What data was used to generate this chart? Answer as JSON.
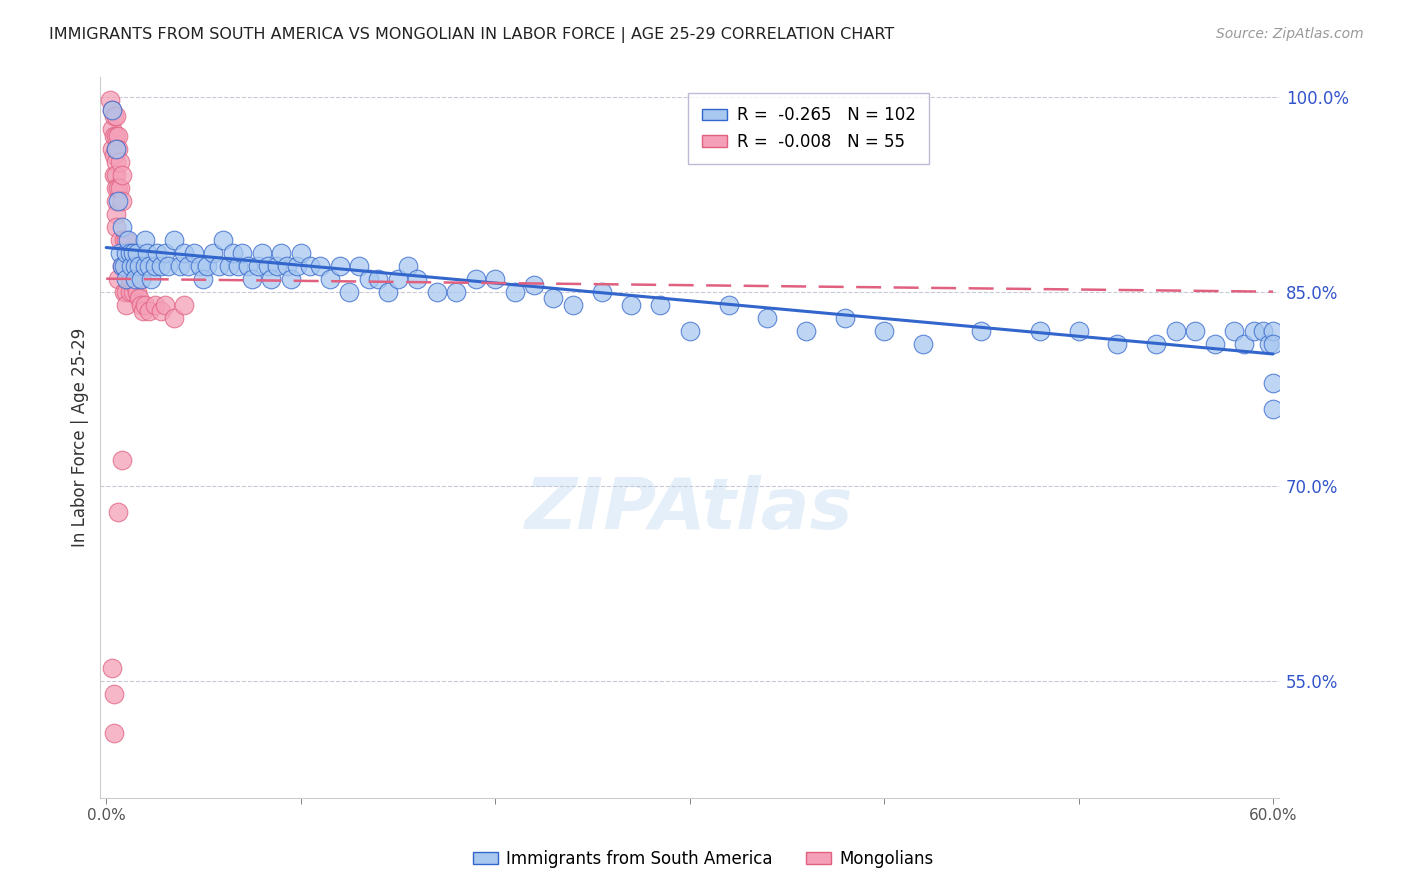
{
  "title": "IMMIGRANTS FROM SOUTH AMERICA VS MONGOLIAN IN LABOR FORCE | AGE 25-29 CORRELATION CHART",
  "source": "Source: ZipAtlas.com",
  "ylabel": "In Labor Force | Age 25-29",
  "r_blue": -0.265,
  "n_blue": 102,
  "r_pink": -0.008,
  "n_pink": 55,
  "legend_blue": "Immigrants from South America",
  "legend_pink": "Mongolians",
  "xlim": [
    -0.003,
    0.603
  ],
  "ylim": [
    0.46,
    1.015
  ],
  "right_yticks": [
    0.55,
    0.7,
    0.85,
    1.0
  ],
  "right_yticklabels": [
    "55.0%",
    "70.0%",
    "85.0%",
    "100.0%"
  ],
  "blue_color": "#A8C8F0",
  "pink_color": "#F4A0B8",
  "blue_line_color": "#3366CC",
  "pink_line_color": "#E06080",
  "watermark": "ZIPAtlas",
  "blue_scatter_x": [
    0.003,
    0.005,
    0.006,
    0.007,
    0.008,
    0.008,
    0.009,
    0.01,
    0.01,
    0.011,
    0.012,
    0.013,
    0.014,
    0.015,
    0.015,
    0.016,
    0.017,
    0.018,
    0.02,
    0.02,
    0.021,
    0.022,
    0.023,
    0.025,
    0.026,
    0.028,
    0.03,
    0.032,
    0.035,
    0.038,
    0.04,
    0.042,
    0.045,
    0.048,
    0.05,
    0.052,
    0.055,
    0.058,
    0.06,
    0.063,
    0.065,
    0.068,
    0.07,
    0.073,
    0.075,
    0.078,
    0.08,
    0.083,
    0.085,
    0.088,
    0.09,
    0.093,
    0.095,
    0.098,
    0.1,
    0.105,
    0.11,
    0.115,
    0.12,
    0.125,
    0.13,
    0.135,
    0.14,
    0.145,
    0.15,
    0.155,
    0.16,
    0.17,
    0.18,
    0.19,
    0.2,
    0.21,
    0.22,
    0.23,
    0.24,
    0.255,
    0.27,
    0.285,
    0.3,
    0.32,
    0.34,
    0.36,
    0.38,
    0.4,
    0.42,
    0.45,
    0.48,
    0.5,
    0.52,
    0.54,
    0.55,
    0.56,
    0.57,
    0.58,
    0.585,
    0.59,
    0.595,
    0.598,
    0.6,
    0.6,
    0.6,
    0.6
  ],
  "blue_scatter_y": [
    0.99,
    0.96,
    0.92,
    0.88,
    0.87,
    0.9,
    0.87,
    0.88,
    0.86,
    0.89,
    0.88,
    0.87,
    0.88,
    0.87,
    0.86,
    0.88,
    0.87,
    0.86,
    0.89,
    0.87,
    0.88,
    0.87,
    0.86,
    0.87,
    0.88,
    0.87,
    0.88,
    0.87,
    0.89,
    0.87,
    0.88,
    0.87,
    0.88,
    0.87,
    0.86,
    0.87,
    0.88,
    0.87,
    0.89,
    0.87,
    0.88,
    0.87,
    0.88,
    0.87,
    0.86,
    0.87,
    0.88,
    0.87,
    0.86,
    0.87,
    0.88,
    0.87,
    0.86,
    0.87,
    0.88,
    0.87,
    0.87,
    0.86,
    0.87,
    0.85,
    0.87,
    0.86,
    0.86,
    0.85,
    0.86,
    0.87,
    0.86,
    0.85,
    0.85,
    0.86,
    0.86,
    0.85,
    0.855,
    0.845,
    0.84,
    0.85,
    0.84,
    0.84,
    0.82,
    0.84,
    0.83,
    0.82,
    0.83,
    0.82,
    0.81,
    0.82,
    0.82,
    0.82,
    0.81,
    0.81,
    0.82,
    0.82,
    0.81,
    0.82,
    0.81,
    0.82,
    0.82,
    0.81,
    0.82,
    0.81,
    0.78,
    0.76
  ],
  "pink_scatter_x": [
    0.002,
    0.003,
    0.003,
    0.003,
    0.004,
    0.004,
    0.004,
    0.004,
    0.005,
    0.005,
    0.005,
    0.005,
    0.005,
    0.005,
    0.005,
    0.005,
    0.005,
    0.006,
    0.006,
    0.006,
    0.006,
    0.007,
    0.007,
    0.007,
    0.008,
    0.008,
    0.008,
    0.009,
    0.009,
    0.01,
    0.01,
    0.01,
    0.01,
    0.011,
    0.012,
    0.012,
    0.013,
    0.014,
    0.015,
    0.016,
    0.017,
    0.018,
    0.019,
    0.02,
    0.022,
    0.025,
    0.028,
    0.03,
    0.035,
    0.04,
    0.003,
    0.004,
    0.004,
    0.006,
    0.008
  ],
  "pink_scatter_y": [
    0.998,
    0.99,
    0.975,
    0.96,
    0.985,
    0.97,
    0.955,
    0.94,
    0.985,
    0.97,
    0.96,
    0.95,
    0.94,
    0.93,
    0.92,
    0.91,
    0.9,
    0.97,
    0.96,
    0.93,
    0.86,
    0.95,
    0.93,
    0.89,
    0.94,
    0.92,
    0.87,
    0.89,
    0.85,
    0.89,
    0.87,
    0.85,
    0.84,
    0.87,
    0.86,
    0.85,
    0.86,
    0.85,
    0.855,
    0.85,
    0.845,
    0.84,
    0.835,
    0.84,
    0.835,
    0.84,
    0.835,
    0.84,
    0.83,
    0.84,
    0.56,
    0.54,
    0.51,
    0.68,
    0.72
  ],
  "blue_trend_x0": 0.0,
  "blue_trend_x1": 0.6,
  "blue_trend_y0": 0.884,
  "blue_trend_y1": 0.802,
  "pink_trend_x0": 0.0,
  "pink_trend_x1": 0.6,
  "pink_trend_y0": 0.86,
  "pink_trend_y1": 0.85
}
